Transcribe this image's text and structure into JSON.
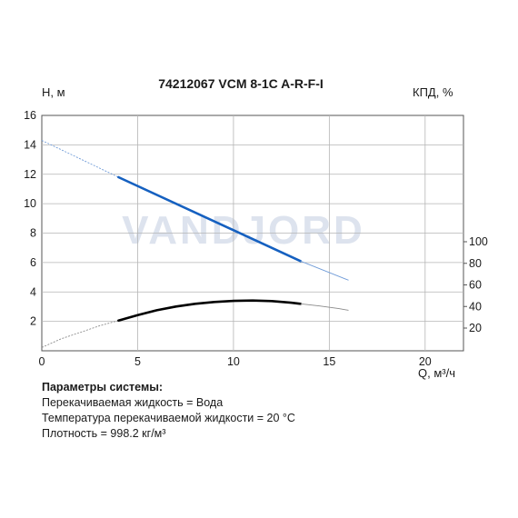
{
  "chart_data": {
    "type": "line",
    "title": "74212067 VCM 8-1C A-R-F-I",
    "ylabel_left": "H, м",
    "ylabel_right": "КПД, %",
    "xlabel": "Q, м³/ч",
    "watermark": "VANDJORD",
    "xlim": [
      0,
      22
    ],
    "ylim": [
      0,
      16
    ],
    "x_ticks": [
      0,
      5,
      10,
      15,
      20
    ],
    "y_ticks": [
      2,
      4,
      6,
      8,
      10,
      12,
      14,
      16
    ],
    "right_ticks": [
      20,
      40,
      60,
      80,
      100
    ],
    "grid": true,
    "colors": {
      "head": "#1560c0",
      "efficiency": "#000000",
      "extension": "#8a8a8a",
      "watermark": "#dde3ee"
    },
    "series": [
      {
        "axis": "left",
        "dashed_extension": {
          "x": [
            0,
            4
          ],
          "y": [
            14.3,
            11.8
          ]
        },
        "x": [
          4,
          13.5
        ],
        "y": [
          11.8,
          6.1
        ],
        "trailing_extension": {
          "x": [
            13.5,
            16
          ],
          "y": [
            6.1,
            4.8
          ]
        }
      },
      {
        "axis": "right",
        "dashed_extension": {
          "x": [
            0,
            1,
            2,
            3,
            4
          ],
          "y": [
            2,
            10,
            16,
            22,
            27
          ]
        },
        "x": [
          4,
          5,
          6,
          7,
          8,
          9,
          10,
          11,
          12,
          13,
          13.5
        ],
        "y": [
          27,
          32,
          36.5,
          40,
          42.5,
          44.2,
          45.2,
          45.5,
          45.0,
          43.5,
          42.5
        ],
        "trailing_extension": {
          "x": [
            13.5,
            14.5,
            15.5,
            16
          ],
          "y": [
            42.5,
            40.5,
            38.0,
            36.5
          ]
        }
      }
    ]
  },
  "params": {
    "heading": "Параметры системы:",
    "lines": [
      "Перекачиваемая жидкость = Вода",
      "Температура перекачиваемой жидкости = 20 °C",
      "Плотность = 998.2 кг/м³"
    ]
  }
}
